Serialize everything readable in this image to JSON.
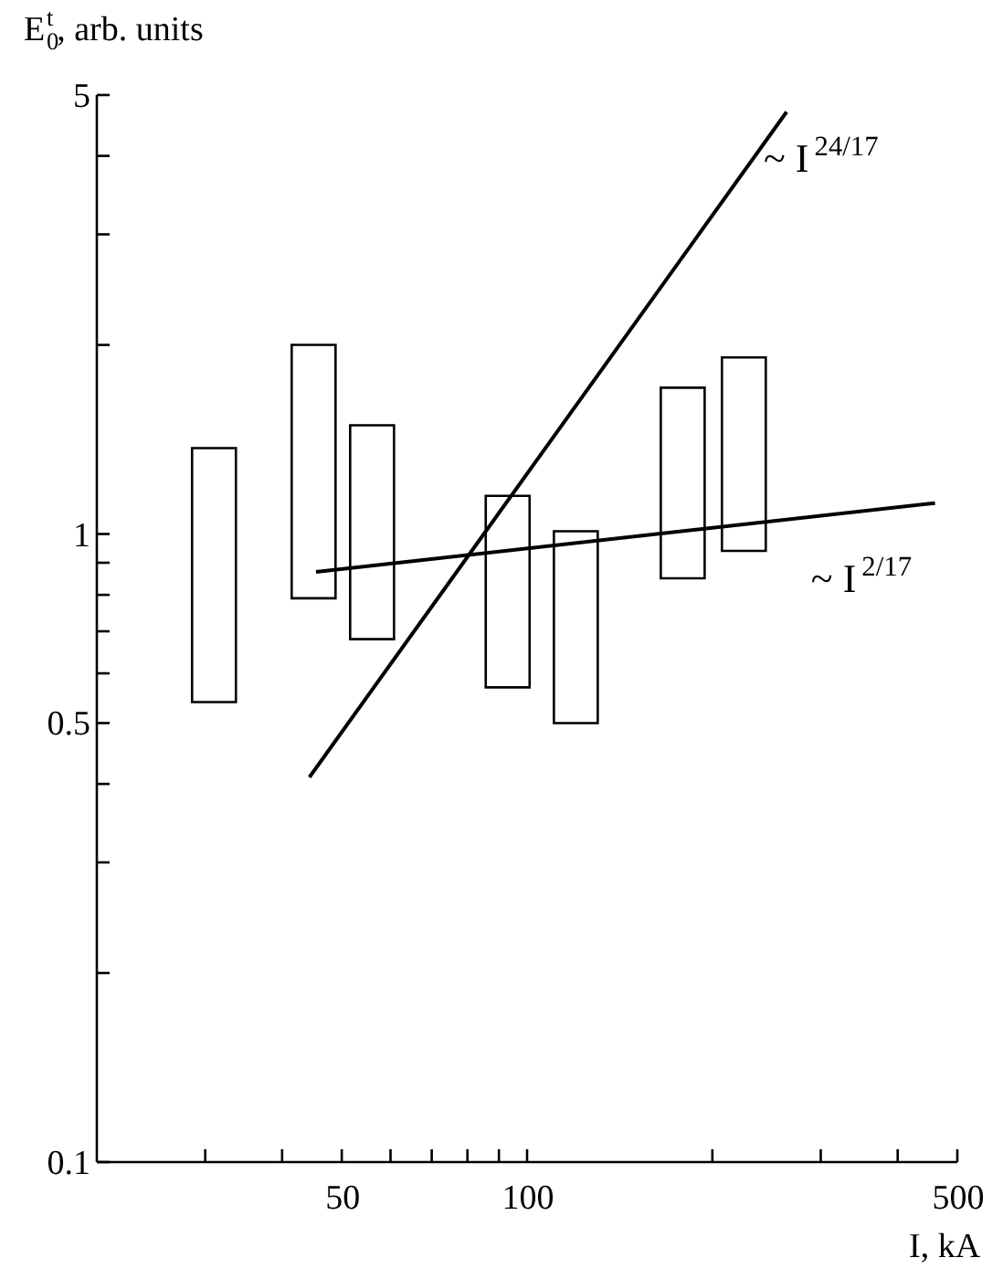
{
  "chart_data": {
    "type": "bar",
    "xlabel": "I, kA",
    "ylabel": "E$_{0}$$^{t}$, arb. units",
    "log": "xy",
    "grid": false,
    "xlim": [
      20,
      500
    ],
    "ylim": [
      0.1,
      5
    ],
    "xticks": [
      {
        "value": 30,
        "label": null
      },
      {
        "value": 40,
        "label": null
      },
      50,
      {
        "value": 60,
        "label": null
      },
      {
        "value": 70,
        "label": null
      },
      {
        "value": 80,
        "label": null
      },
      {
        "value": 90,
        "label": null
      },
      100,
      {
        "value": 200,
        "label": null
      },
      {
        "value": 300,
        "label": null
      },
      {
        "value": 400,
        "label": null
      },
      500
    ],
    "yticks": [
      0.1,
      {
        "value": 0.2,
        "label": null
      },
      {
        "value": 0.3,
        "label": null
      },
      {
        "value": 0.4,
        "label": null
      },
      0.5,
      {
        "value": 0.6,
        "label": null
      },
      {
        "value": 0.7,
        "label": null
      },
      {
        "value": 0.8,
        "label": null
      },
      {
        "value": 0.9,
        "label": null
      },
      1,
      {
        "value": 2,
        "label": null
      },
      {
        "value": 3,
        "label": null
      },
      {
        "value": 4,
        "label": null
      },
      5
    ],
    "series": [
      {
        "color": "#000000",
        "x": [
          31,
          45,
          56,
          93,
          120,
          179,
          225
        ],
        "base": [
          0.54,
          0.79,
          0.68,
          0.57,
          0.5,
          0.85,
          0.94
        ],
        "values": [
          0.83,
          1.21,
          0.81,
          0.58,
          0.51,
          0.86,
          0.97
        ]
      },
      {
        "type": "line",
        "color": "#000000",
        "x": [
          44.3,
          264
        ],
        "values": [
          0.41,
          4.7
        ]
      },
      {
        "type": "line",
        "color": "#000000",
        "x": [
          45.4,
          460
        ],
        "values": [
          0.87,
          1.12
        ]
      }
    ],
    "annotations": [
      "~ I$^{24/17}$",
      "~ I$^{2/17}$"
    ]
  }
}
